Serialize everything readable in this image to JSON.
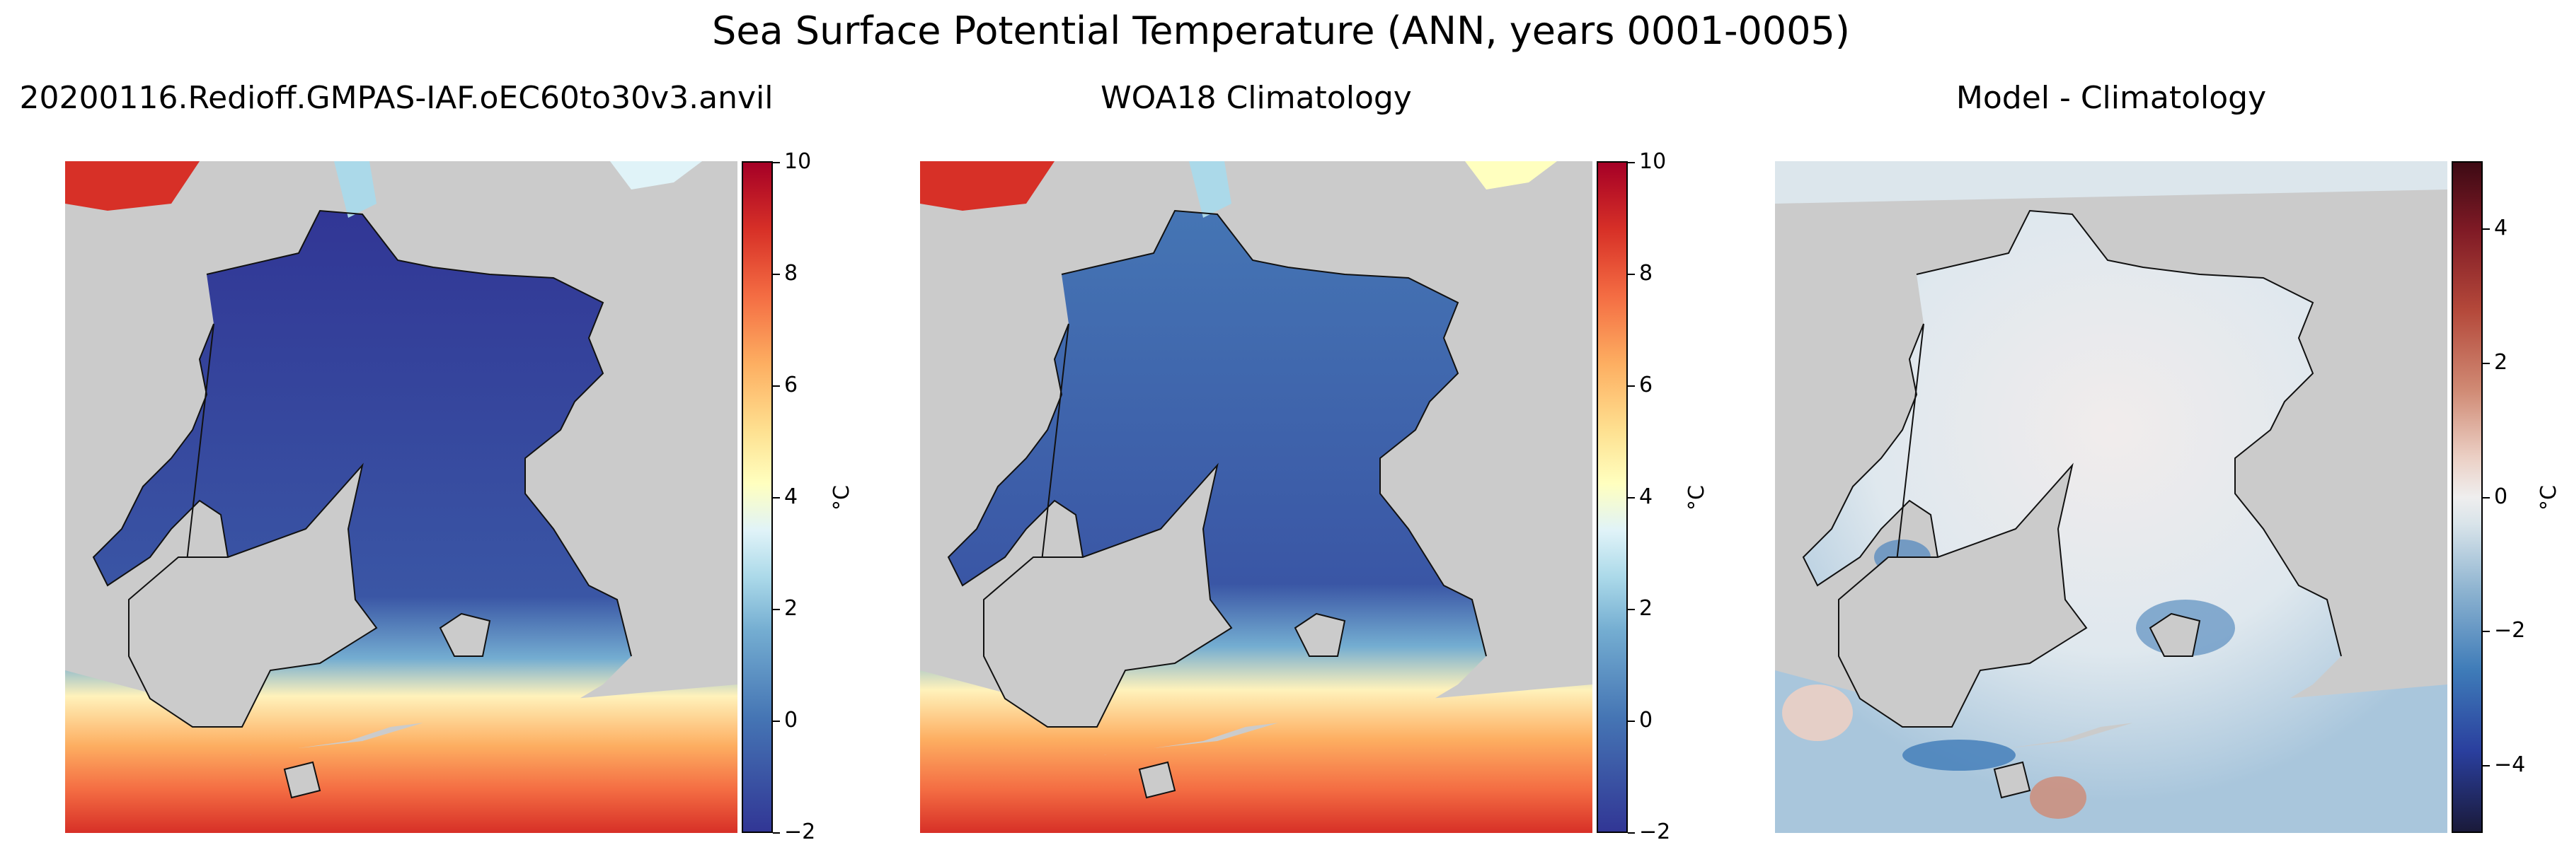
{
  "figure": {
    "title": "Sea Surface Potential Temperature (ANN, years 0001-0005)"
  },
  "chart_data": [
    {
      "type": "heatmap",
      "title": "20200116.Redioff.GMPAS-IAF.oEC60to30v3.anvil",
      "colormap": "RdYlBu_r",
      "clim": [
        -2,
        10
      ],
      "colorbar_ticks": [
        "−2",
        "0",
        "2",
        "4",
        "6",
        "8",
        "10"
      ],
      "colorbar_tick_values": [
        -2,
        0,
        2,
        4,
        6,
        8,
        10
      ],
      "colorbar_label": "°C",
      "colors": [
        "#313695",
        "#4575b4",
        "#74add1",
        "#abd9e9",
        "#e0f3f8",
        "#ffffbf",
        "#fee090",
        "#fdae61",
        "#f46d43",
        "#d73027",
        "#a50026"
      ]
    },
    {
      "type": "heatmap",
      "title": "WOA18 Climatology",
      "colormap": "RdYlBu_r",
      "clim": [
        -2,
        10
      ],
      "colorbar_ticks": [
        "−2",
        "0",
        "2",
        "4",
        "6",
        "8",
        "10"
      ],
      "colorbar_tick_values": [
        -2,
        0,
        2,
        4,
        6,
        8,
        10
      ],
      "colorbar_label": "°C",
      "colors": [
        "#313695",
        "#4575b4",
        "#74add1",
        "#abd9e9",
        "#e0f3f8",
        "#ffffbf",
        "#fee090",
        "#fdae61",
        "#f46d43",
        "#d73027",
        "#a50026"
      ]
    },
    {
      "type": "heatmap",
      "title": "Model - Climatology",
      "colormap": "balance",
      "clim": [
        -5,
        5
      ],
      "colorbar_ticks": [
        "−4",
        "−2",
        "0",
        "2",
        "4"
      ],
      "colorbar_tick_values": [
        -4,
        -2,
        0,
        2,
        4
      ],
      "colorbar_label": "°C",
      "colors": [
        "#1a1a3a",
        "#2a3f9e",
        "#3e7bb8",
        "#8db3d0",
        "#d9e4ea",
        "#efeeee",
        "#ebcfc4",
        "#d08a74",
        "#b4483a",
        "#7f1a25",
        "#3d0a14"
      ]
    }
  ]
}
